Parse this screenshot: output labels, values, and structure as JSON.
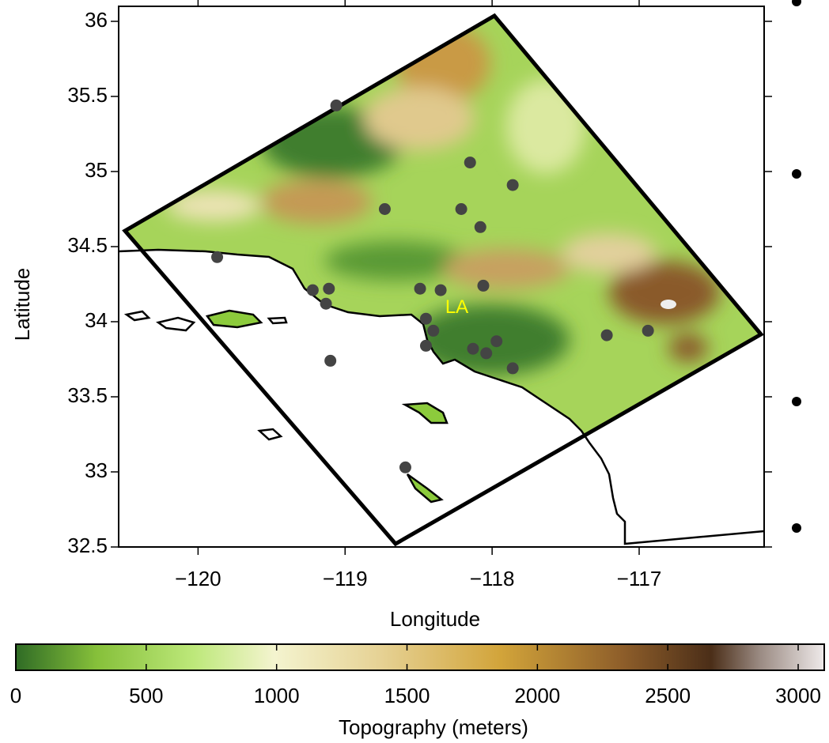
{
  "chart_data": {
    "type": "map",
    "xlabel": "Longitude",
    "ylabel": "Latitude",
    "xlim": [
      -120.54,
      -116.15
    ],
    "ylim": [
      32.5,
      36.1
    ],
    "xticks": [
      {
        "value": -120,
        "label": "−120"
      },
      {
        "value": -119,
        "label": "−119"
      },
      {
        "value": -118,
        "label": "−118"
      },
      {
        "value": -117,
        "label": "−117"
      }
    ],
    "yticks": [
      32.5,
      33,
      33.5,
      34,
      34.5,
      35,
      35.5,
      36
    ],
    "marker_color": "#444444",
    "x": [
      -119.06,
      -118.15,
      -117.86,
      -118.73,
      -118.21,
      -118.08,
      -119.87,
      -119.22,
      -119.11,
      -119.13,
      -118.49,
      -118.35,
      -118.06,
      -118.45,
      -118.4,
      -118.45,
      -118.13,
      -118.04,
      -117.97,
      -117.86,
      -117.22,
      -116.94,
      -119.1,
      -118.59
    ],
    "y": [
      35.44,
      35.06,
      34.91,
      34.75,
      34.75,
      34.63,
      34.43,
      34.21,
      34.22,
      34.12,
      34.22,
      34.21,
      34.24,
      34.02,
      33.94,
      33.84,
      33.82,
      33.79,
      33.87,
      33.69,
      33.91,
      33.94,
      33.74,
      33.03
    ],
    "annotations": [
      {
        "text": "LA",
        "x": -118.24,
        "y": 34.09,
        "color": "#ffff00"
      }
    ],
    "colorbar": {
      "label": "Topography (meters)",
      "lim": [
        0,
        3100
      ],
      "ticks": [
        0,
        500,
        1000,
        1500,
        2000,
        2500,
        3000
      ]
    }
  }
}
